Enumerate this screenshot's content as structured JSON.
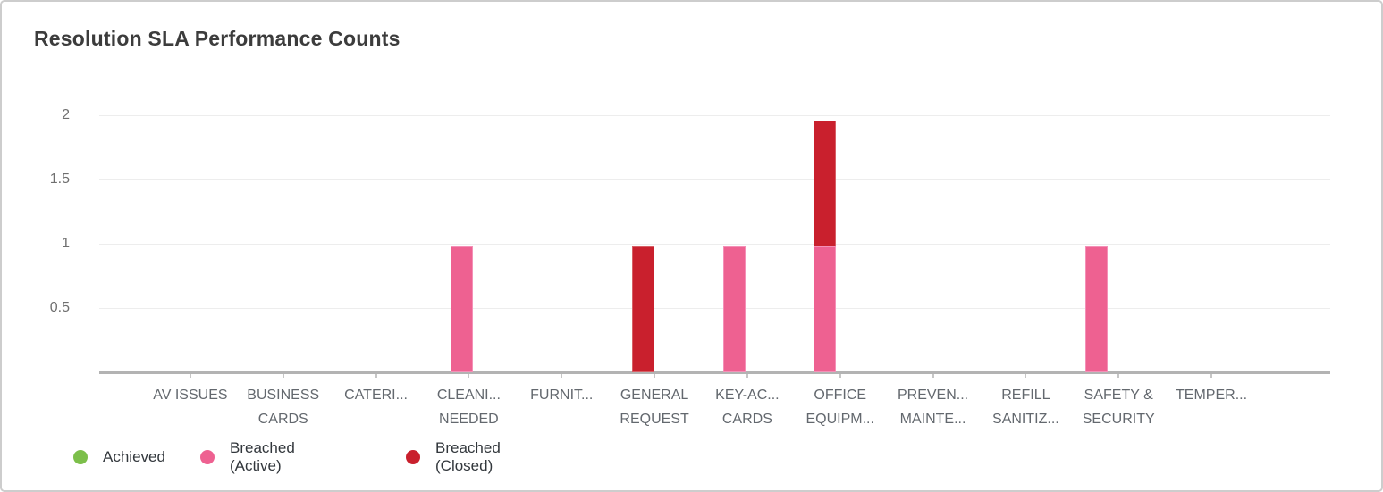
{
  "card": {
    "title": "Resolution SLA Performance Counts"
  },
  "chart_data": {
    "type": "bar",
    "stacked": true,
    "title": "Resolution SLA Performance Counts",
    "xlabel": "",
    "ylabel": "",
    "ylim": [
      0,
      2.1
    ],
    "y_ticks": [
      0.5,
      1,
      1.5,
      2
    ],
    "y_tick_labels": [
      "0.5",
      "1",
      "1.5",
      "2"
    ],
    "grid": true,
    "legend_position": "bottom-left",
    "bar_render_fraction": 0.98,
    "categories": [
      "AV ISSUES",
      "BUSINESS CARDS",
      "CATERI...",
      "CLEANI... NEEDED",
      "FURNIT...",
      "GENERAL REQUEST",
      "KEY-AC... CARDS",
      "OFFICE EQUIPM...",
      "PREVEN... MAINTE...",
      "REFILL SANITIZ...",
      "SAFETY & SECURITY",
      "TEMPER..."
    ],
    "category_label_lines": [
      [
        "AV ISSUES"
      ],
      [
        "BUSINESS",
        "CARDS"
      ],
      [
        "CATERI..."
      ],
      [
        "CLEANI...",
        "NEEDED"
      ],
      [
        "FURNIT..."
      ],
      [
        "GENERAL",
        "REQUEST"
      ],
      [
        "KEY-AC...",
        "CARDS"
      ],
      [
        "OFFICE",
        "EQUIPM..."
      ],
      [
        "PREVEN...",
        "MAINTE..."
      ],
      [
        "REFILL",
        "SANITIZ..."
      ],
      [
        "SAFETY &",
        "SECURITY"
      ],
      [
        "TEMPER..."
      ]
    ],
    "series": [
      {
        "name": "Achieved",
        "color": "#7cbf4a",
        "border_color": "#95cf6a",
        "values": [
          0,
          0,
          0,
          0,
          0,
          0,
          0,
          0,
          0,
          0,
          0,
          0
        ]
      },
      {
        "name": "Breached (Active)",
        "color": "#ee6191",
        "border_color": "#f490b7",
        "values": [
          0,
          0,
          0,
          1,
          0,
          0,
          1,
          1,
          0,
          0,
          1,
          0
        ]
      },
      {
        "name": "Breached (Closed)",
        "color": "#c9202d",
        "border_color": "#d75f66",
        "values": [
          0,
          0,
          0,
          0,
          0,
          1,
          0,
          1,
          0,
          0,
          0,
          0
        ]
      }
    ]
  },
  "legend": {
    "items": [
      {
        "label": "Achieved",
        "color": "#7cbf4a"
      },
      {
        "label": "Breached (Active)",
        "color": "#ee6191"
      },
      {
        "label": "Breached (Closed)",
        "color": "#c9202d"
      }
    ]
  }
}
